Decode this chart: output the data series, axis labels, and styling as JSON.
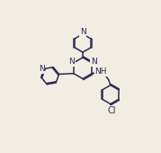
{
  "background_color": "#f2ede3",
  "line_color": "#2a2a50",
  "line_width": 1.1,
  "font_size": 6.5,
  "figsize": [
    1.79,
    1.7
  ],
  "dpi": 100,
  "xlim": [
    0,
    10
  ],
  "ylim": [
    0,
    10
  ]
}
